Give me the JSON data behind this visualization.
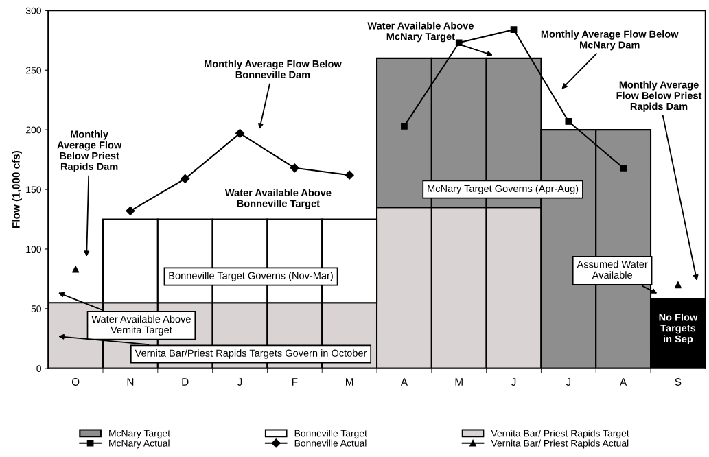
{
  "chart_data": {
    "type": "bar",
    "stacked": true,
    "ylabel": "Flow (1,000 cfs)",
    "categories": [
      "O",
      "N",
      "D",
      "J",
      "F",
      "M",
      "A",
      "M",
      "J",
      "J",
      "A",
      "S"
    ],
    "ylim": [
      0,
      300
    ],
    "yticks": [
      0,
      50,
      100,
      150,
      200,
      250,
      300
    ],
    "grid": false,
    "legend": "bottom",
    "series": [
      {
        "name": "Vernita Bar/ Priest Rapids Target",
        "color": "#d9d3d3",
        "values": [
          55,
          55,
          55,
          55,
          55,
          55,
          135,
          135,
          135,
          null,
          null,
          null
        ]
      },
      {
        "name": "Bonneville Target",
        "color": "#ffffff",
        "values": [
          null,
          70,
          70,
          70,
          70,
          70,
          null,
          null,
          null,
          null,
          null,
          null
        ]
      },
      {
        "name": "McNary Target",
        "color": "#8e8e8e",
        "values": [
          null,
          null,
          null,
          null,
          null,
          null,
          125,
          125,
          125,
          200,
          200,
          null
        ]
      },
      {
        "color": "#000000",
        "values": [
          null,
          null,
          null,
          null,
          null,
          null,
          null,
          null,
          null,
          null,
          null,
          58
        ]
      },
      {
        "name": "Vernita Bar/ Priest Rapids Actual",
        "type": "scatter",
        "color": "#000000",
        "marker": "triangle",
        "values": [
          83,
          null,
          null,
          null,
          null,
          null,
          null,
          null,
          null,
          null,
          null,
          70
        ]
      },
      {
        "name": "Bonneville Actual",
        "type": "line",
        "color": "#000000",
        "marker": "diamond",
        "values": [
          null,
          132,
          159,
          197,
          168,
          162,
          null,
          null,
          null,
          null,
          null,
          null
        ]
      },
      {
        "name": "McNary Actual",
        "type": "line",
        "color": "#000000",
        "marker": "square",
        "values": [
          null,
          null,
          null,
          null,
          null,
          null,
          203,
          273,
          284,
          207,
          168,
          null
        ]
      }
    ],
    "annotations": [
      "Monthly\nAverage Flow\nBelow Priest\nRapids Dam",
      "Monthly Average Flow Below\nBonneville Dam",
      "Water Available Above\nBonneville Target",
      "Bonneville Target Governs (Nov-Mar)",
      "Water Available Above\nVernita Target",
      "Vernita Bar/Priest Rapids Targets Govern in October",
      "Water Available Above\nMcNary Target",
      "McNary Target Governs (Apr-Aug)",
      "Monthly Average Flow Below\nMcNary Dam",
      "Monthly Average\nFlow Below Priest\nRapids Dam",
      "Assumed Water\nAvailable",
      "No Flow\nTargets\nin Sep"
    ]
  }
}
